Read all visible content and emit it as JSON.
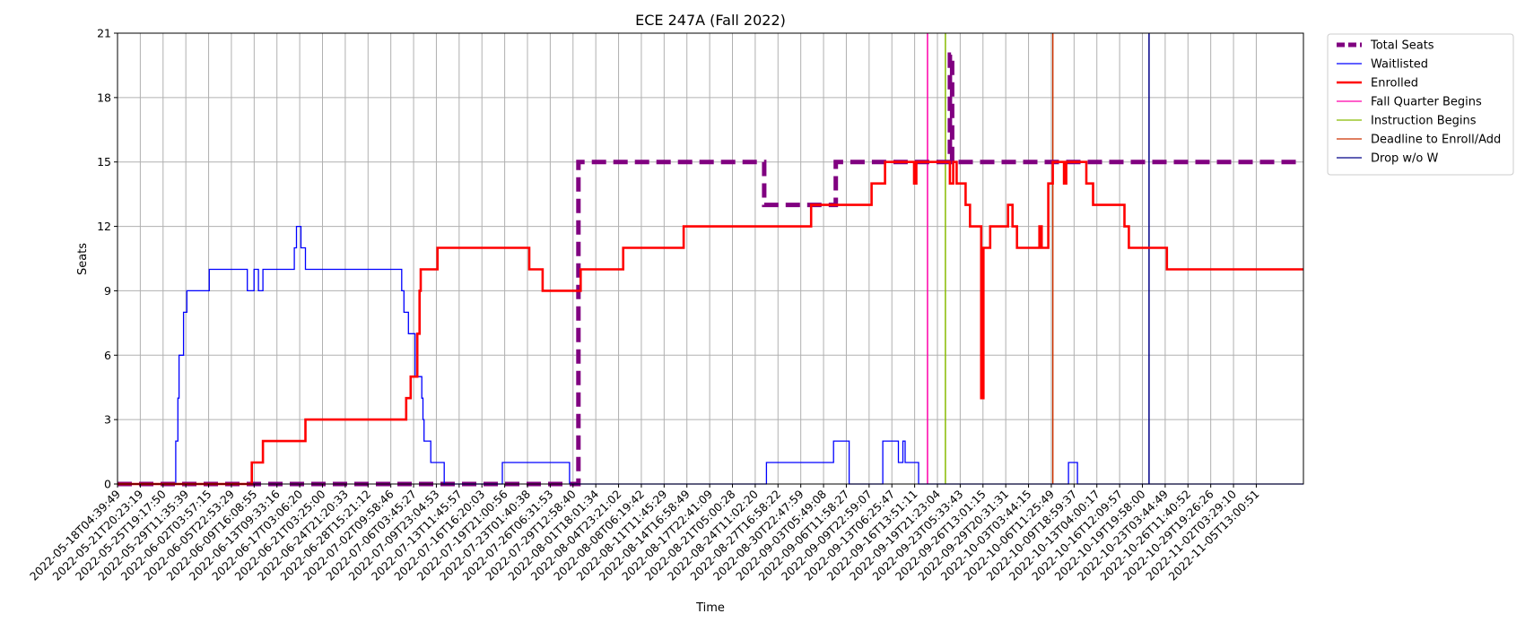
{
  "chart_data": {
    "type": "line",
    "title": "ECE 247A (Fall 2022)",
    "xlabel": "Time",
    "ylabel": "Seats",
    "ylim": [
      0,
      21
    ],
    "xlim": [
      0,
      53
    ],
    "y_ticks": [
      0,
      3,
      6,
      9,
      12,
      15,
      18,
      21
    ],
    "grid": true,
    "legend_position": "outside-top-right",
    "x_ticks": [
      "2022-05-18T04:39:49",
      "2022-05-21T20:23:19",
      "2022-05-25T19:17:50",
      "2022-05-29T11:35:39",
      "2022-06-02T03:57:15",
      "2022-06-05T22:53:29",
      "2022-06-09T16:08:55",
      "2022-06-13T09:33:16",
      "2022-06-17T03:06:20",
      "2022-06-21T03:25:00",
      "2022-06-24T21:20:33",
      "2022-06-28T15:21:12",
      "2022-07-02T09:58:46",
      "2022-07-06T03:45:27",
      "2022-07-09T23:04:53",
      "2022-07-13T11:45:57",
      "2022-07-16T16:20:03",
      "2022-07-19T21:00:56",
      "2022-07-23T01:40:38",
      "2022-07-26T06:31:53",
      "2022-07-29T12:58:40",
      "2022-08-01T18:01:34",
      "2022-08-04T23:21:02",
      "2022-08-08T06:19:42",
      "2022-08-11T11:45:29",
      "2022-08-14T16:58:49",
      "2022-08-17T22:41:09",
      "2022-08-21T05:00:28",
      "2022-08-24T11:02:20",
      "2022-08-27T16:58:22",
      "2022-08-30T22:47:59",
      "2022-09-03T05:49:08",
      "2022-09-06T11:58:27",
      "2022-09-09T22:59:07",
      "2022-09-13T06:25:47",
      "2022-09-16T13:51:11",
      "2022-09-19T21:23:04",
      "2022-09-23T05:33:43",
      "2022-09-26T13:01:15",
      "2022-09-29T20:31:31",
      "2022-10-03T03:44:15",
      "2022-10-06T11:25:49",
      "2022-10-09T18:59:37",
      "2022-10-13T04:00:17",
      "2022-10-16T12:09:57",
      "2022-10-19T19:58:00",
      "2022-10-23T03:44:49",
      "2022-10-26T11:40:52",
      "2022-10-29T19:26:26",
      "2022-11-02T03:29:10",
      "2022-11-05T13:00:51"
    ],
    "x_unit_note": "x positions are in tick-index units (tick i = x_ticks[i])",
    "series": [
      {
        "name": "Total Seats",
        "color": "#800080",
        "style": "dashed-thick",
        "points": [
          [
            0,
            0
          ],
          [
            20.6,
            0
          ],
          [
            20.6,
            15
          ],
          [
            28.9,
            15
          ],
          [
            28.9,
            13
          ],
          [
            32.1,
            13
          ],
          [
            32.1,
            15
          ],
          [
            37.2,
            15
          ],
          [
            37.2,
            20
          ],
          [
            37.3,
            20
          ],
          [
            37.3,
            15
          ],
          [
            53,
            15
          ]
        ]
      },
      {
        "name": "Waitlisted",
        "color": "#0000ff",
        "style": "solid-thin",
        "points": [
          [
            0,
            0
          ],
          [
            2.6,
            0
          ],
          [
            2.6,
            2
          ],
          [
            2.7,
            2
          ],
          [
            2.7,
            4
          ],
          [
            2.75,
            4
          ],
          [
            2.75,
            6
          ],
          [
            2.95,
            6
          ],
          [
            2.95,
            8
          ],
          [
            3.1,
            8
          ],
          [
            3.1,
            9
          ],
          [
            4.1,
            9
          ],
          [
            4.1,
            10
          ],
          [
            5.8,
            10
          ],
          [
            5.8,
            9
          ],
          [
            6.1,
            9
          ],
          [
            6.1,
            10
          ],
          [
            6.3,
            10
          ],
          [
            6.3,
            9
          ],
          [
            6.5,
            9
          ],
          [
            6.5,
            10
          ],
          [
            7.9,
            10
          ],
          [
            7.9,
            11
          ],
          [
            8.0,
            11
          ],
          [
            8.0,
            12
          ],
          [
            8.2,
            12
          ],
          [
            8.2,
            11
          ],
          [
            8.4,
            11
          ],
          [
            8.4,
            10
          ],
          [
            12.7,
            10
          ],
          [
            12.7,
            9
          ],
          [
            12.8,
            9
          ],
          [
            12.8,
            8
          ],
          [
            13.0,
            8
          ],
          [
            13.0,
            7
          ],
          [
            13.3,
            7
          ],
          [
            13.3,
            5
          ],
          [
            13.6,
            5
          ],
          [
            13.6,
            4
          ],
          [
            13.65,
            4
          ],
          [
            13.65,
            3
          ],
          [
            13.7,
            3
          ],
          [
            13.7,
            2
          ],
          [
            14.0,
            2
          ],
          [
            14.0,
            1
          ],
          [
            14.6,
            1
          ],
          [
            14.6,
            0
          ],
          [
            17.2,
            0
          ],
          [
            17.2,
            1
          ],
          [
            20.2,
            1
          ],
          [
            20.2,
            0
          ],
          [
            29.0,
            0
          ],
          [
            29.0,
            1
          ],
          [
            32.0,
            1
          ],
          [
            32.0,
            2
          ],
          [
            32.7,
            2
          ],
          [
            32.7,
            0
          ],
          [
            34.2,
            0
          ],
          [
            34.2,
            2
          ],
          [
            34.9,
            2
          ],
          [
            34.9,
            1
          ],
          [
            35.1,
            1
          ],
          [
            35.1,
            2
          ],
          [
            35.2,
            2
          ],
          [
            35.2,
            1
          ],
          [
            35.8,
            1
          ],
          [
            35.8,
            0
          ],
          [
            42.5,
            0
          ],
          [
            42.5,
            1
          ],
          [
            42.9,
            1
          ],
          [
            42.9,
            0
          ],
          [
            53,
            0
          ]
        ]
      },
      {
        "name": "Enrolled",
        "color": "#ff0000",
        "style": "solid-thick",
        "points": [
          [
            0,
            0
          ],
          [
            6.0,
            0
          ],
          [
            6.0,
            1
          ],
          [
            6.5,
            1
          ],
          [
            6.5,
            2
          ],
          [
            8.4,
            2
          ],
          [
            8.4,
            3
          ],
          [
            12.9,
            3
          ],
          [
            12.9,
            4
          ],
          [
            13.1,
            4
          ],
          [
            13.1,
            5
          ],
          [
            13.4,
            5
          ],
          [
            13.4,
            7
          ],
          [
            13.5,
            7
          ],
          [
            13.5,
            9
          ],
          [
            13.55,
            9
          ],
          [
            13.55,
            10
          ],
          [
            14.3,
            10
          ],
          [
            14.3,
            11
          ],
          [
            18.4,
            11
          ],
          [
            18.4,
            10
          ],
          [
            19.0,
            10
          ],
          [
            19.0,
            9
          ],
          [
            20.7,
            9
          ],
          [
            20.7,
            10
          ],
          [
            22.6,
            10
          ],
          [
            22.6,
            11
          ],
          [
            25.3,
            11
          ],
          [
            25.3,
            12
          ],
          [
            31.0,
            12
          ],
          [
            31.0,
            13
          ],
          [
            33.7,
            13
          ],
          [
            33.7,
            14
          ],
          [
            34.3,
            14
          ],
          [
            34.3,
            15
          ],
          [
            35.6,
            15
          ],
          [
            35.6,
            14
          ],
          [
            35.7,
            14
          ],
          [
            35.7,
            15
          ],
          [
            37.2,
            15
          ],
          [
            37.2,
            14
          ],
          [
            37.35,
            14
          ],
          [
            37.35,
            15
          ],
          [
            37.5,
            15
          ],
          [
            37.5,
            14
          ],
          [
            37.9,
            14
          ],
          [
            37.9,
            13
          ],
          [
            38.1,
            13
          ],
          [
            38.1,
            12
          ],
          [
            38.6,
            12
          ],
          [
            38.6,
            4
          ],
          [
            38.7,
            4
          ],
          [
            38.7,
            11
          ],
          [
            39.0,
            11
          ],
          [
            39.0,
            12
          ],
          [
            39.8,
            12
          ],
          [
            39.8,
            13
          ],
          [
            40.0,
            13
          ],
          [
            40.0,
            12
          ],
          [
            40.2,
            12
          ],
          [
            40.2,
            11
          ],
          [
            41.2,
            11
          ],
          [
            41.2,
            12
          ],
          [
            41.3,
            12
          ],
          [
            41.3,
            11
          ],
          [
            41.6,
            11
          ],
          [
            41.6,
            14
          ],
          [
            41.8,
            14
          ],
          [
            41.8,
            15
          ],
          [
            42.3,
            15
          ],
          [
            42.3,
            14
          ],
          [
            42.4,
            14
          ],
          [
            42.4,
            15
          ],
          [
            43.3,
            15
          ],
          [
            43.3,
            14
          ],
          [
            43.6,
            14
          ],
          [
            43.6,
            13
          ],
          [
            45.0,
            13
          ],
          [
            45.0,
            12
          ],
          [
            45.2,
            12
          ],
          [
            45.2,
            11
          ],
          [
            46.9,
            11
          ],
          [
            46.9,
            10
          ],
          [
            53,
            10
          ]
        ]
      }
    ],
    "vertical_lines": [
      {
        "name": "Fall Quarter Begins",
        "color": "#ff00aa",
        "x": 36.2
      },
      {
        "name": "Instruction Begins",
        "color": "#88bb00",
        "x": 37.0
      },
      {
        "name": "Deadline to Enroll/Add",
        "color": "#cc3300",
        "x": 41.8
      },
      {
        "name": "Drop w/o W",
        "color": "#000088",
        "x": 46.1
      }
    ],
    "legend": [
      {
        "label": "Total Seats",
        "color": "#800080",
        "style": "dashed-thick"
      },
      {
        "label": "Waitlisted",
        "color": "#0000ff",
        "style": "solid-thin"
      },
      {
        "label": "Enrolled",
        "color": "#ff0000",
        "style": "solid-thick"
      },
      {
        "label": "Fall Quarter Begins",
        "color": "#ff00aa",
        "style": "solid-thin"
      },
      {
        "label": "Instruction Begins",
        "color": "#88bb00",
        "style": "solid-thin"
      },
      {
        "label": "Deadline to Enroll/Add",
        "color": "#cc3300",
        "style": "solid-thin"
      },
      {
        "label": "Drop w/o W",
        "color": "#000088",
        "style": "solid-thin"
      }
    ]
  }
}
